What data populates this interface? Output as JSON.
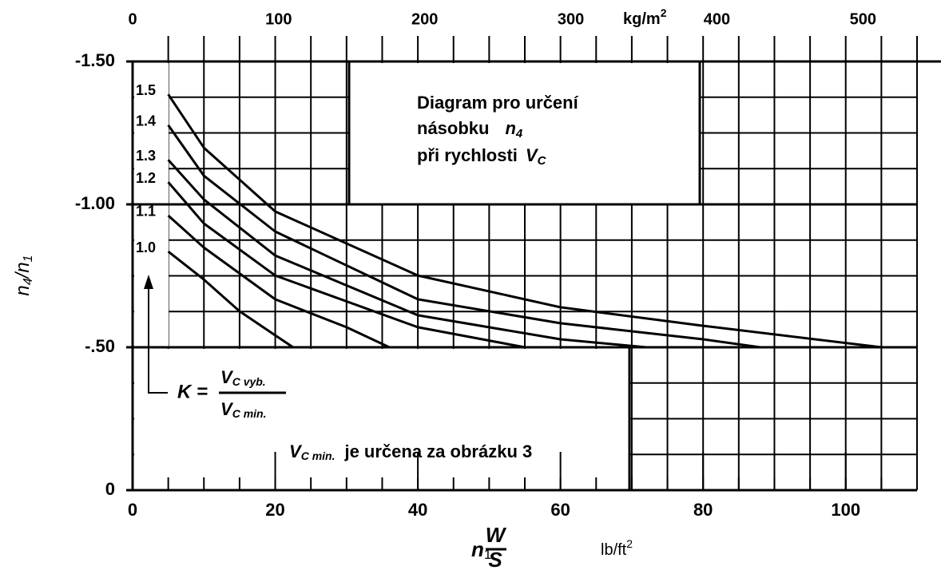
{
  "chart_data": {
    "type": "line",
    "title": {
      "line1": "Diagram pro určení",
      "line2": "násobku",
      "n": "n",
      "n_sub": "4",
      "line3": "při rychlosti",
      "v": "V",
      "v_sub": "C"
    },
    "ylabel": {
      "n": "n",
      "sub1": "4",
      "slash": "/n",
      "sub2": "1"
    },
    "xlabel": {
      "n": "n",
      "sub": "1",
      "num": "W",
      "den": "S",
      "unit": "lb/ft",
      "unit_sup": "2"
    },
    "x2label": {
      "unit": "kg/m",
      "unit_sup": "2"
    },
    "k_formula": {
      "k": "K =",
      "num_v": "V",
      "num_sub": "C vyb.",
      "den_v": "V",
      "den_sub": "C min."
    },
    "note": {
      "v": "V",
      "v_sub": "C min.",
      "text": "je určena za obrázku 3"
    },
    "xlim": [
      0,
      110
    ],
    "xticks": [
      0,
      20,
      40,
      60,
      80,
      100
    ],
    "x2lim": [
      0,
      537
    ],
    "x2ticks": [
      0,
      100,
      200,
      300,
      400,
      500
    ],
    "ylim": [
      0,
      -1.5
    ],
    "yticks": [
      {
        "value": -1.5,
        "label": "-1.50"
      },
      {
        "value": -1.0,
        "label": "-1.00"
      },
      {
        "value": -0.5,
        "label": "-.50"
      },
      0
    ],
    "grid": true,
    "color": "#000000",
    "series": [
      {
        "name": "1.5",
        "x": [
          5,
          10,
          20,
          40,
          60,
          80,
          105
        ],
        "values": [
          -1.385,
          -1.198,
          -0.975,
          -0.751,
          -0.64,
          -0.575,
          -0.5
        ]
      },
      {
        "name": "1.4",
        "x": [
          5,
          10,
          20,
          40,
          60,
          80,
          88
        ],
        "values": [
          -1.277,
          -1.1,
          -0.905,
          -0.668,
          -0.584,
          -0.528,
          -0.5
        ]
      },
      {
        "name": "1.3",
        "x": [
          5,
          10,
          20,
          40,
          60,
          72
        ],
        "values": [
          -1.156,
          -1.017,
          -0.821,
          -0.612,
          -0.528,
          -0.5
        ]
      },
      {
        "name": "1.2",
        "x": [
          5,
          10,
          20,
          40,
          55
        ],
        "values": [
          -1.078,
          -0.933,
          -0.751,
          -0.57,
          -0.5
        ]
      },
      {
        "name": "1.1",
        "x": [
          5,
          10,
          20,
          30,
          36
        ],
        "values": [
          -0.961,
          -0.849,
          -0.668,
          -0.57,
          -0.5
        ]
      },
      {
        "name": "1.0",
        "x": [
          5,
          10,
          15,
          20,
          22.5
        ],
        "values": [
          -0.835,
          -0.737,
          -0.626,
          -0.542,
          -0.5
        ]
      }
    ]
  }
}
